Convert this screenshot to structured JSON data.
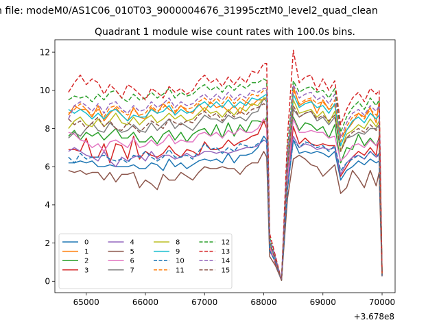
{
  "chart_data": {
    "type": "line",
    "suptitle": "n file: modeM0/AS1C06_010T03_9000004676_31995cztM0_level2_quad_clean",
    "title": "Quadrant 1 module wise count rates with 100.0s bins.",
    "xlabel": "",
    "ylabel": "",
    "x_offset_label": "+3.678e8",
    "xlim": [
      64470,
      70220
    ],
    "ylim": [
      -0.6,
      12.65
    ],
    "xticks": [
      65000,
      66000,
      67000,
      68000,
      69000,
      70000
    ],
    "yticks": [
      0,
      2,
      4,
      6,
      8,
      10,
      12
    ],
    "legend_location": "lower left",
    "legend_columns": 4,
    "x": [
      64700,
      64800,
      64900,
      65000,
      65100,
      65200,
      65300,
      65400,
      65500,
      65600,
      65700,
      65800,
      65900,
      66000,
      66100,
      66200,
      66300,
      66400,
      66500,
      66600,
      66700,
      66800,
      66900,
      67000,
      67100,
      67200,
      67300,
      67400,
      67500,
      67600,
      67700,
      67800,
      67900,
      68000,
      68050,
      68100,
      68200,
      68300,
      68400,
      68500,
      68600,
      68700,
      68800,
      68900,
      69000,
      69100,
      69200,
      69300,
      69400,
      69500,
      69600,
      69700,
      69800,
      69900,
      69950,
      70000
    ],
    "series": [
      {
        "name": "0",
        "color": "#1f77b4",
        "values": [
          6.2,
          6.2,
          6.3,
          6.2,
          6.3,
          6.0,
          6.0,
          6.1,
          6.0,
          6.0,
          6.0,
          6.1,
          5.9,
          5.9,
          6.2,
          6.1,
          5.8,
          6.4,
          6.0,
          6.2,
          5.9,
          6.1,
          6.3,
          6.4,
          6.3,
          6.4,
          6.2,
          6.7,
          6.2,
          6.6,
          6.6,
          6.7,
          7.0,
          7.6,
          7.4,
          1.6,
          1.0,
          0.05,
          4.8,
          7.4,
          6.7,
          6.8,
          6.7,
          6.8,
          6.7,
          6.5,
          6.8,
          5.3,
          5.8,
          6.0,
          6.3,
          6.1,
          6.4,
          6.2,
          6.3,
          0.3
        ]
      },
      {
        "name": "1",
        "color": "#ff7f0e",
        "values": [
          8.7,
          9.2,
          9.0,
          9.0,
          8.6,
          9.2,
          8.4,
          8.8,
          9.1,
          8.7,
          8.4,
          9.1,
          8.6,
          8.5,
          9.1,
          8.8,
          9.3,
          9.0,
          8.8,
          9.2,
          8.9,
          8.8,
          9.3,
          8.9,
          9.4,
          9.1,
          9.2,
          8.9,
          9.2,
          8.8,
          9.4,
          9.2,
          9.5,
          9.5,
          9.6,
          2.0,
          0.9,
          0.05,
          6.3,
          10.2,
          9.2,
          9.4,
          9.5,
          8.8,
          9.5,
          9.0,
          9.2,
          7.6,
          7.9,
          8.3,
          8.8,
          8.6,
          9.1,
          8.3,
          9.4,
          0.4
        ]
      },
      {
        "name": "2",
        "color": "#2ca02c",
        "values": [
          7.6,
          7.9,
          7.4,
          7.8,
          7.6,
          7.8,
          7.4,
          7.7,
          8.0,
          7.5,
          7.5,
          7.8,
          7.3,
          7.3,
          7.6,
          7.2,
          7.7,
          7.9,
          7.4,
          7.8,
          7.3,
          7.7,
          7.9,
          8.0,
          7.6,
          8.2,
          7.5,
          8.3,
          7.6,
          8.2,
          7.8,
          8.4,
          8.4,
          8.3,
          8.6,
          1.8,
          1.0,
          0.05,
          5.5,
          8.6,
          7.9,
          8.3,
          8.2,
          7.9,
          8.1,
          7.5,
          8.2,
          6.2,
          7.0,
          6.9,
          7.7,
          7.1,
          7.5,
          7.1,
          7.5,
          0.35
        ]
      },
      {
        "name": "3",
        "color": "#d62728",
        "values": [
          6.9,
          6.9,
          6.8,
          7.5,
          6.5,
          6.5,
          7.2,
          6.2,
          7.2,
          7.1,
          6.4,
          7.6,
          6.4,
          6.8,
          6.6,
          6.5,
          6.7,
          7.1,
          6.7,
          6.5,
          6.9,
          6.8,
          6.6,
          7.3,
          6.9,
          6.9,
          7.0,
          7.4,
          7.1,
          7.3,
          7.4,
          7.6,
          7.7,
          8.4,
          8.0,
          1.8,
          0.9,
          0.05,
          5.2,
          8.1,
          7.2,
          7.5,
          7.2,
          7.1,
          7.2,
          7.1,
          7.1,
          5.5,
          6.0,
          6.5,
          6.8,
          6.6,
          7.0,
          6.6,
          7.6,
          0.35
        ]
      },
      {
        "name": "4",
        "color": "#9467bd",
        "values": [
          6.8,
          7.0,
          6.8,
          6.6,
          6.5,
          6.3,
          6.8,
          6.3,
          6.0,
          6.5,
          6.3,
          6.5,
          6.6,
          6.3,
          6.8,
          6.4,
          6.6,
          6.6,
          6.4,
          6.5,
          6.7,
          6.5,
          6.6,
          6.8,
          6.8,
          6.7,
          6.8,
          6.7,
          6.8,
          6.9,
          7.0,
          7.0,
          7.1,
          7.4,
          7.3,
          1.6,
          1.0,
          0.05,
          5.0,
          7.6,
          7.0,
          7.2,
          7.1,
          6.9,
          7.0,
          6.9,
          7.0,
          5.6,
          6.2,
          6.5,
          6.6,
          6.4,
          6.8,
          6.5,
          6.6,
          0.3
        ]
      },
      {
        "name": "5",
        "color": "#8c564b",
        "values": [
          5.8,
          5.7,
          5.8,
          5.6,
          5.7,
          5.7,
          5.3,
          5.7,
          5.2,
          5.6,
          5.6,
          5.7,
          4.9,
          5.3,
          5.1,
          4.8,
          5.6,
          5.3,
          5.3,
          5.7,
          5.5,
          5.3,
          5.7,
          6.0,
          5.9,
          5.9,
          6.0,
          5.9,
          5.9,
          5.6,
          6.0,
          6.2,
          6.2,
          6.8,
          6.5,
          1.3,
          0.8,
          0.05,
          4.3,
          6.4,
          6.6,
          6.4,
          6.1,
          6.0,
          5.5,
          5.8,
          6.1,
          4.6,
          4.9,
          5.8,
          5.4,
          4.9,
          5.8,
          5.0,
          5.7,
          0.25
        ]
      },
      {
        "name": "6",
        "color": "#e377c2",
        "values": [
          7.8,
          7.7,
          7.4,
          7.3,
          7.0,
          7.2,
          6.8,
          7.3,
          7.4,
          7.2,
          7.0,
          7.5,
          7.0,
          7.1,
          7.4,
          7.1,
          7.3,
          7.7,
          7.2,
          7.4,
          7.3,
          7.3,
          7.7,
          7.8,
          7.6,
          7.8,
          7.5,
          7.9,
          7.7,
          8.0,
          7.8,
          7.8,
          8.0,
          8.5,
          8.3,
          1.8,
          1.0,
          0.05,
          5.4,
          8.5,
          7.8,
          7.8,
          7.9,
          7.8,
          7.8,
          7.5,
          7.6,
          6.3,
          6.6,
          7.1,
          7.2,
          7.0,
          7.4,
          7.1,
          7.4,
          0.3
        ]
      },
      {
        "name": "7",
        "color": "#7f7f7f",
        "values": [
          7.5,
          7.8,
          7.6,
          8.0,
          8.3,
          7.9,
          7.8,
          8.3,
          8.0,
          7.8,
          7.9,
          8.2,
          7.9,
          7.8,
          8.3,
          7.9,
          8.2,
          8.5,
          8.0,
          8.3,
          8.1,
          7.9,
          8.3,
          8.7,
          8.5,
          8.5,
          8.3,
          8.7,
          8.5,
          8.6,
          8.4,
          8.8,
          8.9,
          9.6,
          9.4,
          2.0,
          1.1,
          0.05,
          5.8,
          9.0,
          8.6,
          8.8,
          8.9,
          8.4,
          8.6,
          8.2,
          8.6,
          6.8,
          7.5,
          7.6,
          7.8,
          7.7,
          8.0,
          8.0,
          8.2,
          0.35
        ]
      },
      {
        "name": "8",
        "color": "#bcbd22",
        "values": [
          8.0,
          8.4,
          8.6,
          8.2,
          8.1,
          8.5,
          8.1,
          8.4,
          8.8,
          8.3,
          8.2,
          8.6,
          8.2,
          8.5,
          8.7,
          8.3,
          8.5,
          8.8,
          8.5,
          8.7,
          8.4,
          8.5,
          8.8,
          9.1,
          8.8,
          8.9,
          8.6,
          9.0,
          8.7,
          9.1,
          8.9,
          9.3,
          9.2,
          9.6,
          9.6,
          2.0,
          1.1,
          0.05,
          6.0,
          9.5,
          8.8,
          8.9,
          9.0,
          8.6,
          8.9,
          8.3,
          8.9,
          6.8,
          7.7,
          7.9,
          8.2,
          8.0,
          8.5,
          8.1,
          8.4,
          0.35
        ]
      },
      {
        "name": "9",
        "color": "#17becf",
        "values": [
          9.0,
          8.8,
          9.0,
          8.8,
          8.5,
          8.8,
          8.5,
          8.9,
          9.0,
          8.7,
          8.4,
          8.7,
          8.6,
          8.6,
          9.0,
          8.8,
          8.9,
          9.2,
          8.7,
          9.0,
          8.8,
          8.9,
          9.2,
          9.4,
          9.1,
          9.4,
          9.1,
          9.5,
          9.1,
          9.4,
          9.2,
          9.6,
          9.5,
          9.7,
          9.8,
          2.1,
          1.1,
          0.05,
          6.2,
          9.8,
          9.1,
          9.3,
          9.4,
          9.1,
          9.2,
          8.8,
          9.3,
          7.1,
          7.9,
          8.4,
          8.6,
          8.3,
          8.8,
          8.5,
          8.7,
          0.35
        ]
      },
      {
        "name": "10",
        "color": "#1f77b4",
        "dash": "6,3",
        "values": [
          6.5,
          6.2,
          6.7,
          6.4,
          6.5,
          6.5,
          6.6,
          6.4,
          6.3,
          6.4,
          6.2,
          6.6,
          6.5,
          6.8,
          6.5,
          6.3,
          6.5,
          6.9,
          6.5,
          6.5,
          6.6,
          6.4,
          6.8,
          7.2,
          6.9,
          7.0,
          6.7,
          7.0,
          6.8,
          7.2,
          7.1,
          7.0,
          7.2,
          7.4,
          7.4,
          1.6,
          1.0,
          0.05,
          4.8,
          7.4,
          7.0,
          7.3,
          7.2,
          7.0,
          7.1,
          6.8,
          7.1,
          5.8,
          6.2,
          6.4,
          6.6,
          6.4,
          6.8,
          6.5,
          6.7,
          0.3
        ]
      },
      {
        "name": "11",
        "color": "#ff7f0e",
        "dash": "6,3",
        "values": [
          8.8,
          9.0,
          9.3,
          9.0,
          8.7,
          9.0,
          8.6,
          9.1,
          9.2,
          8.9,
          8.7,
          9.0,
          8.7,
          8.8,
          9.2,
          8.9,
          9.1,
          9.4,
          8.9,
          9.2,
          9.0,
          9.1,
          9.4,
          9.6,
          9.3,
          9.6,
          9.3,
          9.7,
          9.3,
          9.6,
          9.4,
          9.8,
          9.7,
          10.0,
          10.0,
          2.2,
          1.2,
          0.05,
          6.4,
          10.0,
          9.3,
          9.5,
          9.6,
          9.3,
          9.4,
          9.0,
          9.5,
          7.3,
          8.1,
          8.6,
          8.8,
          8.5,
          9.0,
          8.7,
          8.9,
          0.4
        ]
      },
      {
        "name": "12",
        "color": "#2ca02c",
        "dash": "6,3",
        "values": [
          9.5,
          9.7,
          9.6,
          9.7,
          9.4,
          9.8,
          9.5,
          9.9,
          10.0,
          9.6,
          9.4,
          9.8,
          9.5,
          9.6,
          9.9,
          9.6,
          9.8,
          10.1,
          9.6,
          9.9,
          9.7,
          9.8,
          10.1,
          10.3,
          10.0,
          10.2,
          9.9,
          10.3,
          10.0,
          10.3,
          10.1,
          10.4,
          10.4,
          10.6,
          10.5,
          2.3,
          1.2,
          0.05,
          6.8,
          10.5,
          9.9,
          10.1,
          10.2,
          9.9,
          10.0,
          9.6,
          10.1,
          7.8,
          8.6,
          9.1,
          9.4,
          9.0,
          9.6,
          9.2,
          9.5,
          0.4
        ]
      },
      {
        "name": "13",
        "color": "#d62728",
        "dash": "6,3",
        "values": [
          9.9,
          10.4,
          10.8,
          10.3,
          10.6,
          10.4,
          9.8,
          10.3,
          10.0,
          9.6,
          10.3,
          10.1,
          9.8,
          9.5,
          10.1,
          9.9,
          9.6,
          10.2,
          9.9,
          10.1,
          9.8,
          10.0,
          10.5,
          10.8,
          10.4,
          10.6,
          10.2,
          10.7,
          10.3,
          10.7,
          10.4,
          11.0,
          10.9,
          11.4,
          11.4,
          2.5,
          1.3,
          0.05,
          7.5,
          12.1,
          10.4,
          10.7,
          10.8,
          10.0,
          10.6,
          10.0,
          10.5,
          8.2,
          9.0,
          9.6,
          9.9,
          9.4,
          10.1,
          9.8,
          10.0,
          0.45
        ]
      },
      {
        "name": "14",
        "color": "#9467bd",
        "dash": "6,3",
        "values": [
          8.5,
          9.2,
          9.4,
          9.2,
          8.9,
          9.3,
          8.8,
          9.3,
          9.4,
          9.0,
          8.8,
          9.2,
          8.9,
          9.0,
          9.4,
          9.1,
          9.3,
          9.6,
          9.1,
          9.4,
          9.2,
          9.3,
          9.6,
          9.8,
          9.5,
          9.8,
          9.5,
          9.9,
          9.5,
          9.8,
          9.6,
          10.0,
          9.9,
          10.1,
          10.1,
          2.2,
          1.2,
          0.05,
          6.5,
          10.3,
          9.6,
          9.8,
          9.9,
          9.5,
          9.7,
          9.3,
          9.8,
          7.5,
          8.3,
          8.8,
          9.0,
          8.7,
          9.2,
          8.9,
          9.2,
          0.4
        ]
      },
      {
        "name": "15",
        "color": "#8c564b",
        "dash": "6,3",
        "values": [
          8.5,
          8.2,
          8.4,
          8.0,
          8.3,
          8.6,
          8.1,
          8.4,
          8.0,
          7.9,
          8.3,
          8.1,
          7.8,
          8.1,
          8.4,
          8.2,
          8.0,
          8.5,
          8.3,
          8.2,
          8.4,
          8.3,
          8.7,
          8.9,
          8.6,
          8.8,
          8.4,
          8.9,
          8.6,
          8.9,
          8.7,
          9.0,
          9.1,
          9.3,
          9.2,
          2.0,
          1.1,
          0.05,
          5.9,
          9.2,
          8.6,
          8.8,
          8.9,
          8.5,
          8.7,
          8.4,
          8.7,
          6.8,
          7.5,
          7.8,
          8.0,
          7.8,
          8.2,
          7.9,
          8.1,
          0.35
        ]
      }
    ]
  }
}
